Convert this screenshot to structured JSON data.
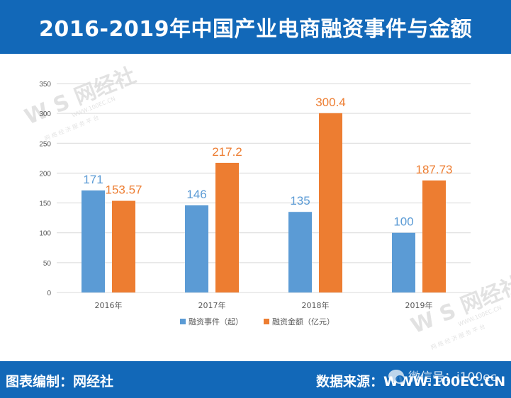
{
  "header": {
    "title": "2016-2019年中国产业电商融资事件与金额"
  },
  "footer": {
    "editor": "图表编制：网经社",
    "source_label": "数据来源：",
    "source_url": "WWW.100EC.CN"
  },
  "watermarks": {
    "logo_text": "W S 网经社",
    "logo_sub": "WWW.100EC.CN",
    "logo_tagline": "网 络 经 济 服 务 平 台",
    "wechat": "微信号：i100ec"
  },
  "colors": {
    "header_bg": "#1268b8",
    "series_events": "#5b9bd5",
    "series_amount": "#ed7d31",
    "grid": "#d9d9d9",
    "axis_text": "#595959"
  },
  "chart_data": {
    "type": "bar",
    "title": "2016-2019年中国产业电商融资事件与金额",
    "categories": [
      "2016年",
      "2017年",
      "2018年",
      "2019年"
    ],
    "series": [
      {
        "name": "融资事件（起）",
        "values": [
          171,
          146,
          135,
          100
        ],
        "labels": [
          "171",
          "146",
          "135",
          "100"
        ]
      },
      {
        "name": "融资金额（亿元）",
        "values": [
          153.57,
          217.2,
          300.4,
          187.73
        ],
        "labels": [
          "153.57",
          "217.2",
          "300.4",
          "187.73"
        ]
      }
    ],
    "ylim": [
      0,
      350
    ],
    "yticks": [
      0,
      50,
      100,
      150,
      200,
      250,
      300,
      350
    ],
    "xlabel": "",
    "ylabel": "",
    "grid": true,
    "legend": "bottom"
  }
}
